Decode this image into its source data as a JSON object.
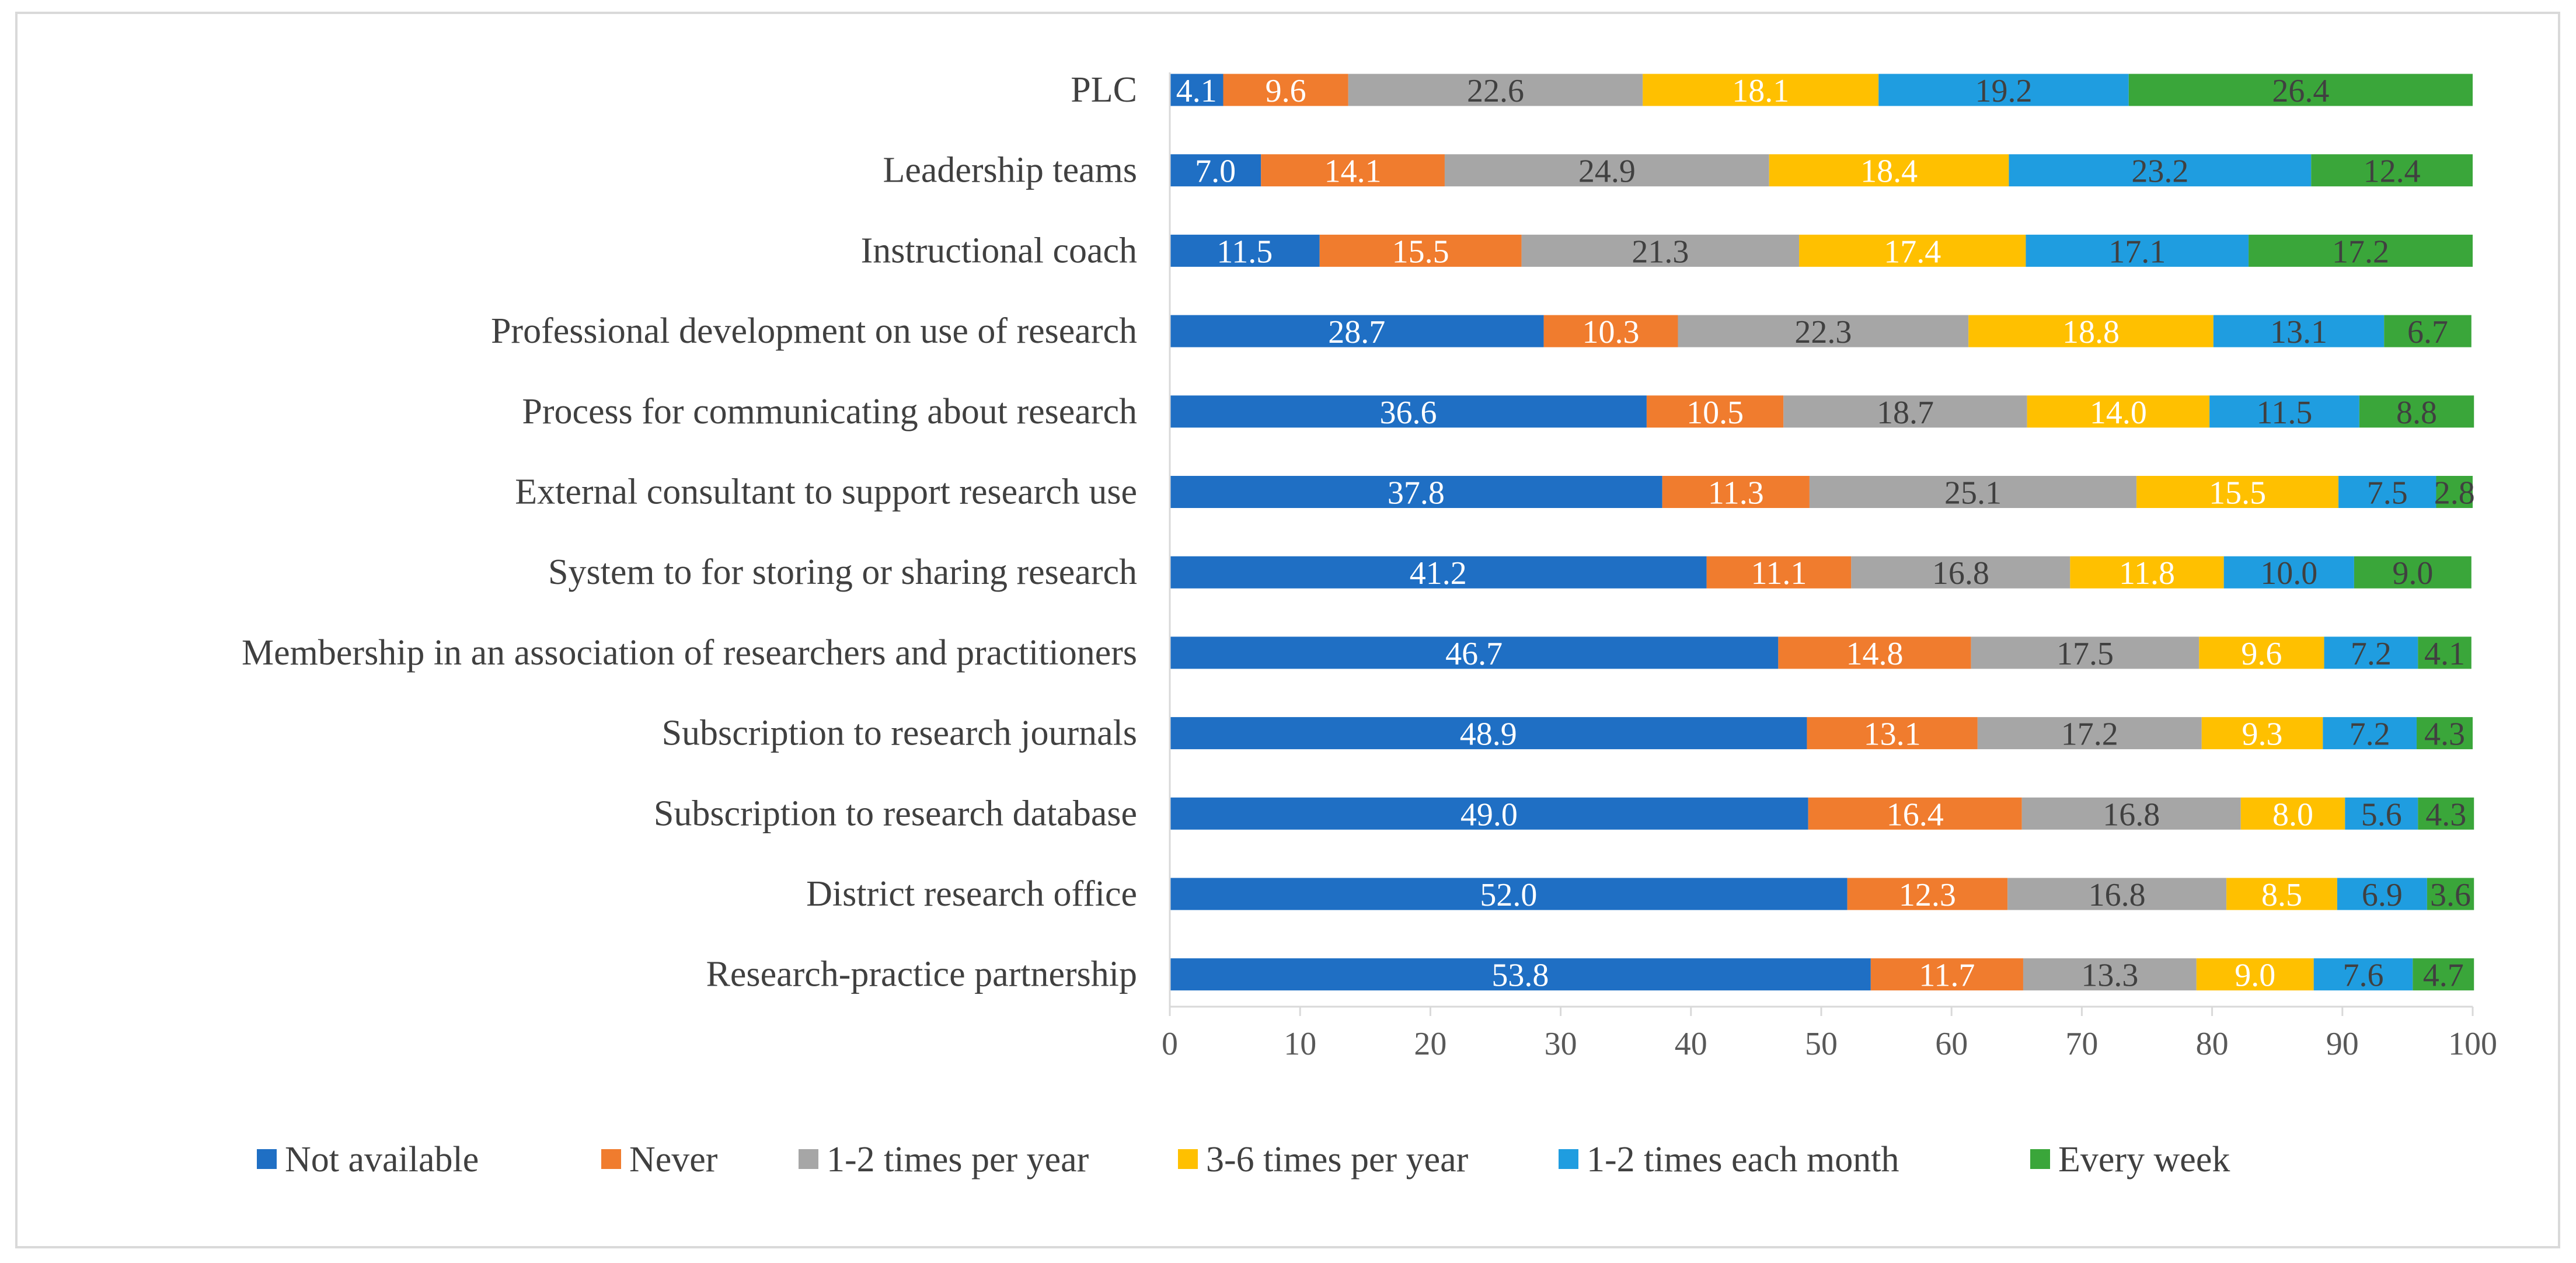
{
  "chart_data": {
    "type": "bar",
    "orientation": "horizontal",
    "stacked": true,
    "title": "",
    "xlabel": "",
    "ylabel": "",
    "xlim": [
      0,
      100
    ],
    "xticks": [
      0,
      10,
      20,
      30,
      40,
      50,
      60,
      70,
      80,
      90,
      100
    ],
    "grid": false,
    "legend_position": "bottom",
    "categories": [
      "PLC",
      "Leadership teams",
      "Instructional coach",
      "Professional development on use of research",
      "Process for communicating about research",
      "External consultant to support research use",
      "System to for storing or sharing research",
      "Membership in an association of researchers and practitioners",
      "Subscription to research journals",
      "Subscription to research database",
      "District research office",
      "Research-practice partnership"
    ],
    "series": [
      {
        "name": "Not available",
        "color": "#1f6fc4",
        "label_color": "#ffffff",
        "values": [
          4.1,
          7.0,
          11.5,
          28.7,
          36.6,
          37.8,
          41.2,
          46.7,
          48.9,
          49.0,
          52.0,
          53.8
        ]
      },
      {
        "name": "Never",
        "color": "#f07c2e",
        "label_color": "#ffffff",
        "values": [
          9.6,
          14.1,
          15.5,
          10.3,
          10.5,
          11.3,
          11.1,
          14.8,
          13.1,
          16.4,
          12.3,
          11.7
        ]
      },
      {
        "name": "1-2 times per year",
        "color": "#a6a6a6",
        "label_color": "#404040",
        "values": [
          22.6,
          24.9,
          21.3,
          22.3,
          18.7,
          25.1,
          16.8,
          17.5,
          17.2,
          16.8,
          16.8,
          13.3
        ]
      },
      {
        "name": "3-6 times per year",
        "color": "#ffc000",
        "label_color": "#ffffff",
        "values": [
          18.1,
          18.4,
          17.4,
          18.8,
          14.0,
          15.5,
          11.8,
          9.6,
          9.3,
          8.0,
          8.5,
          9.0
        ]
      },
      {
        "name": "1-2 times each month",
        "color": "#1f9de0",
        "label_color": "#404040",
        "values": [
          19.2,
          23.2,
          17.1,
          13.1,
          11.5,
          7.5,
          10.0,
          7.2,
          7.2,
          5.6,
          6.9,
          7.6
        ]
      },
      {
        "name": "Every week",
        "color": "#3aa63a",
        "label_color": "#404040",
        "values": [
          26.4,
          12.4,
          17.2,
          6.7,
          8.8,
          2.8,
          9.0,
          4.1,
          4.3,
          4.3,
          3.6,
          4.7
        ]
      }
    ]
  }
}
